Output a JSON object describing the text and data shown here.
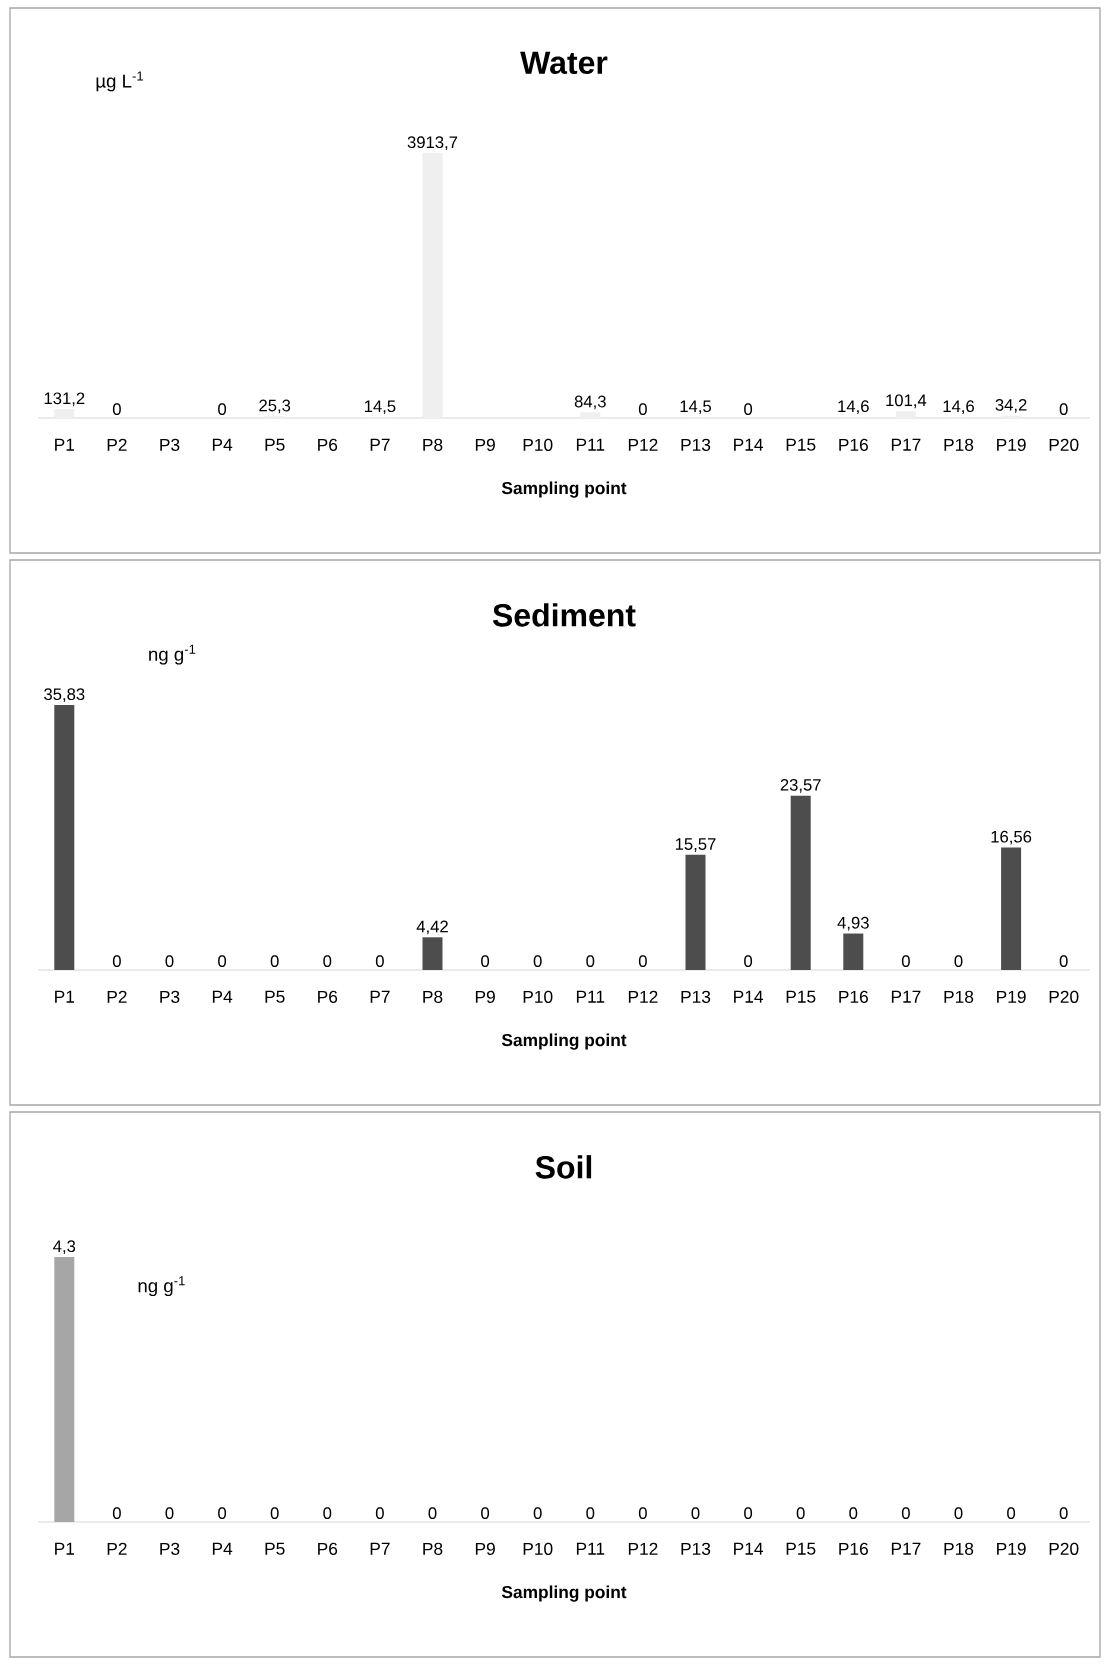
{
  "chart_data": [
    {
      "type": "bar",
      "title": "Water",
      "xlabel": "Sampling point",
      "annotations": [
        "µg L$^{-1}$"
      ],
      "color": "#efefef",
      "categories": [
        "P1",
        "P2",
        "P3",
        "P4",
        "P5",
        "P6",
        "P7",
        "P8",
        "P9",
        "P10",
        "P11",
        "P12",
        "P13",
        "P14",
        "P15",
        "P16",
        "P17",
        "P18",
        "P19",
        "P20"
      ],
      "values": [
        131.2,
        0,
        null,
        0,
        25.3,
        null,
        14.5,
        3913.7,
        null,
        null,
        84.3,
        0,
        14.5,
        0,
        null,
        14.6,
        101.4,
        14.6,
        34.2,
        0
      ],
      "value_labels": [
        "131,2",
        "0",
        null,
        "0",
        "25,3",
        null,
        "14,5",
        "3913,7",
        null,
        null,
        "84,3",
        "0",
        "14,5",
        "0",
        null,
        "14,6",
        "101,4",
        "14,6",
        "34,2",
        "0"
      ]
    },
    {
      "type": "bar",
      "title": "Sediment",
      "xlabel": "Sampling point",
      "annotations": [
        "ng g$^{-1}$"
      ],
      "color": "#4d4d4d",
      "categories": [
        "P1",
        "P2",
        "P3",
        "P4",
        "P5",
        "P6",
        "P7",
        "P8",
        "P9",
        "P10",
        "P11",
        "P12",
        "P13",
        "P14",
        "P15",
        "P16",
        "P17",
        "P18",
        "P19",
        "P20"
      ],
      "values": [
        35.83,
        0,
        0,
        0,
        0,
        0,
        0,
        4.42,
        0,
        0,
        0,
        0,
        15.57,
        0,
        23.57,
        4.93,
        0,
        0,
        16.56,
        0
      ],
      "value_labels": [
        "35,83",
        "0",
        "0",
        "0",
        "0",
        "0",
        "0",
        "4,42",
        "0",
        "0",
        "0",
        "0",
        "15,57",
        "0",
        "23,57",
        "4,93",
        "0",
        "0",
        "16,56",
        "0"
      ]
    },
    {
      "type": "bar",
      "title": "Soil",
      "xlabel": "Sampling point",
      "annotations": [
        "ng g$^{-1}$"
      ],
      "color": "#a6a6a6",
      "categories": [
        "P1",
        "P2",
        "P3",
        "P4",
        "P5",
        "P6",
        "P7",
        "P8",
        "P9",
        "P10",
        "P11",
        "P12",
        "P13",
        "P14",
        "P15",
        "P16",
        "P17",
        "P18",
        "P19",
        "P20"
      ],
      "values": [
        4.3,
        0,
        0,
        0,
        0,
        0,
        0,
        0,
        0,
        0,
        0,
        0,
        0,
        0,
        0,
        0,
        0,
        0,
        0,
        0
      ],
      "value_labels": [
        "4,3",
        "0",
        "0",
        "0",
        "0",
        "0",
        "0",
        "0",
        "0",
        "0",
        "0",
        "0",
        "0",
        "0",
        "0",
        "0",
        "0",
        "0",
        "0",
        "0"
      ]
    }
  ]
}
